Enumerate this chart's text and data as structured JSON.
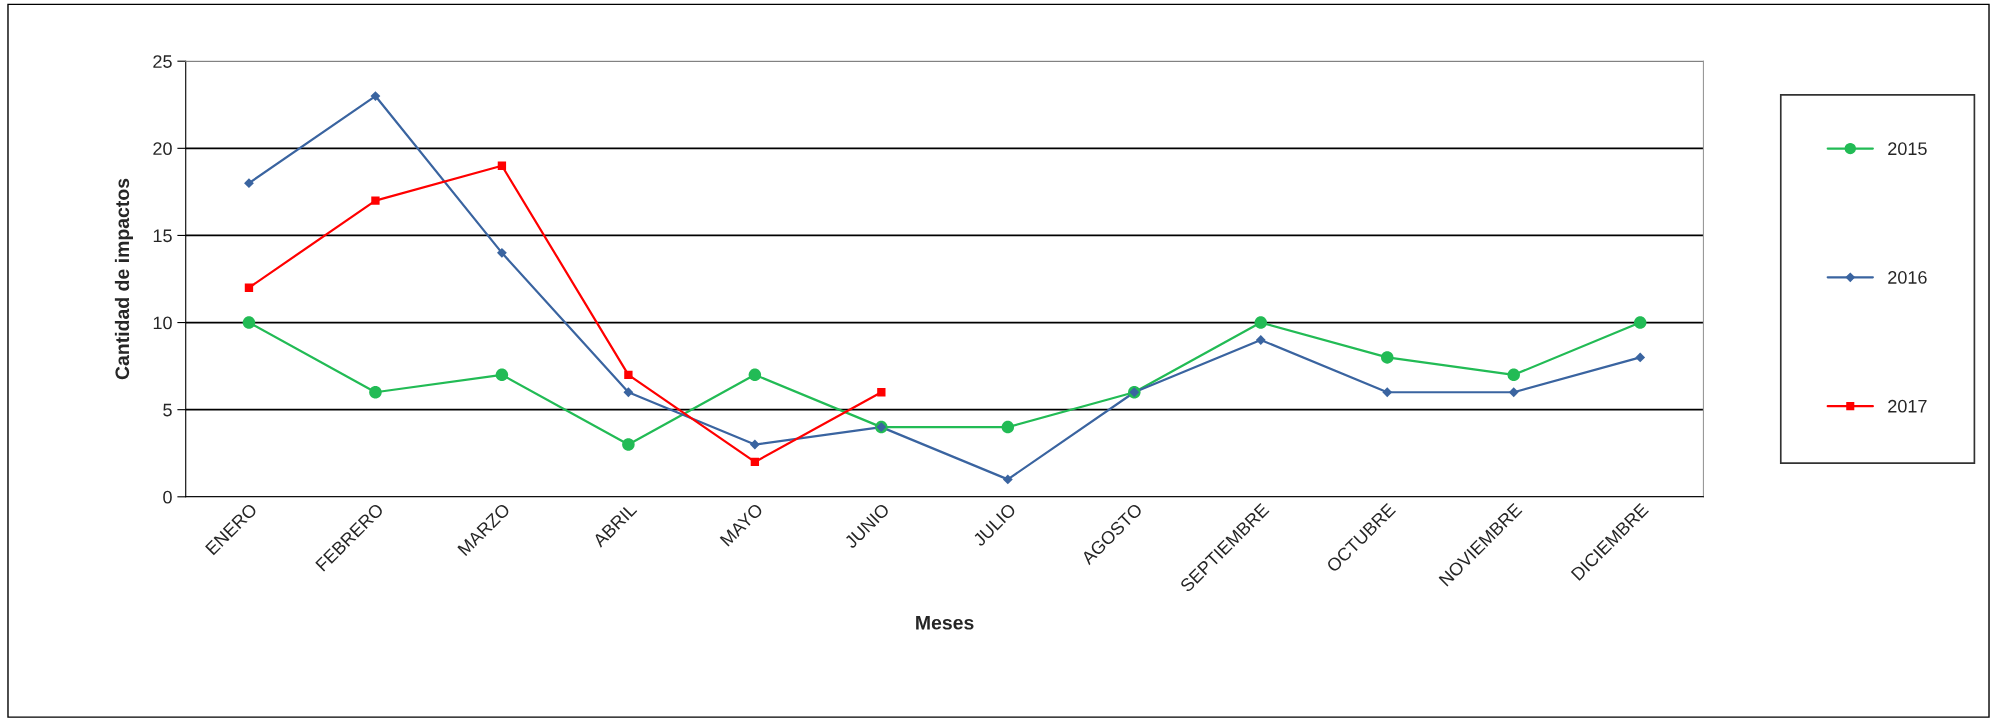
{
  "chart_data": {
    "type": "line",
    "xlabel": "Meses",
    "ylabel": "Cantidad de impactos",
    "categories": [
      "ENERO",
      "FEBRERO",
      "MARZO",
      "ABRIL",
      "MAYO",
      "JUNIO",
      "JULIO",
      "AGOSTO",
      "SEPTIEMBRE",
      "OCTUBRE",
      "NOVIEMBRE",
      "DICIEMBRE"
    ],
    "series": [
      {
        "name": "2015",
        "color": "#22bb55",
        "marker": "circle",
        "values": [
          10,
          6,
          7,
          3,
          7,
          4,
          4,
          6,
          10,
          8,
          7,
          10
        ]
      },
      {
        "name": "2016",
        "color": "#3a64a0",
        "marker": "diamond",
        "values": [
          18,
          23,
          14,
          6,
          3,
          4,
          1,
          6,
          9,
          6,
          6,
          8
        ]
      },
      {
        "name": "2017",
        "color": "#ff0000",
        "marker": "square",
        "values": [
          12,
          17,
          19,
          7,
          2,
          6,
          null,
          null,
          null,
          null,
          null,
          null
        ]
      }
    ],
    "ylim": [
      0,
      25
    ],
    "yticks": [
      0,
      5,
      10,
      15,
      20,
      25
    ],
    "grid": "y",
    "legend": "right",
    "line_style": "solid"
  }
}
